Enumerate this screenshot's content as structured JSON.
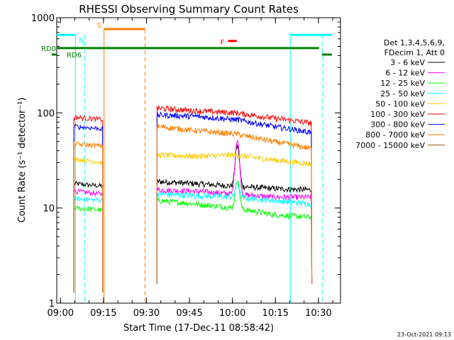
{
  "chart_data": {
    "type": "line",
    "title": "RHESSI Observing Summary Count Rates",
    "xlabel": "Start Time (17-Dec-11 08:58:42)",
    "ylabel": "Count Rate (s⁻¹ detector⁻¹)",
    "ylog": true,
    "ylim": [
      1,
      1000
    ],
    "xlim_minutes": [
      0,
      99
    ],
    "x_ticks": [
      {
        "label": "09:00",
        "t": 1.3
      },
      {
        "label": "09:15",
        "t": 16.3
      },
      {
        "label": "09:30",
        "t": 31.3
      },
      {
        "label": "09:45",
        "t": 46.3
      },
      {
        "label": "10:00",
        "t": 61.3
      },
      {
        "label": "10:15",
        "t": 76.3
      },
      {
        "label": "10:30",
        "t": 91.3
      }
    ],
    "y_ticks": [
      {
        "label": "1",
        "v": 1
      },
      {
        "label": "10",
        "v": 10
      },
      {
        "label": "100",
        "v": 100
      },
      {
        "label": "1000",
        "v": 1000
      }
    ],
    "legend_header": [
      "Det 1,3,4,5,6,9,",
      "FDecim 1, Att 0"
    ],
    "legend_position": "right",
    "series": [
      {
        "name": "3 - 6 keV",
        "color": "#000000",
        "seg1": [
          18,
          17
        ],
        "seg2": [
          19,
          18,
          17,
          16,
          15.5
        ],
        "flare_peak": 45
      },
      {
        "name": "6 - 12 keV",
        "color": "#ff00ff",
        "seg1": [
          15,
          14
        ],
        "seg2": [
          15.5,
          15,
          14,
          13,
          13
        ],
        "flare_peak": 52
      },
      {
        "name": "12 - 25 keV",
        "color": "#00ff00",
        "seg1": [
          10,
          9.5
        ],
        "seg2": [
          12,
          11,
          10,
          8.5,
          8
        ],
        "flare_peak": 20
      },
      {
        "name": "25 - 50 keV",
        "color": "#00ffff",
        "seg1": [
          12.5,
          12
        ],
        "seg2": [
          14,
          13.5,
          13,
          12,
          11
        ],
        "flare_peak": 18
      },
      {
        "name": "50 - 100 keV",
        "color": "#ffcc00",
        "seg1": [
          33,
          30
        ],
        "seg2": [
          36,
          35,
          36,
          32,
          29
        ],
        "flare_peak": 36
      },
      {
        "name": "100 - 300 keV",
        "color": "#ff0000",
        "seg1": [
          90,
          85
        ],
        "seg2": [
          112,
          105,
          100,
          88,
          78
        ],
        "flare_peak": 100
      },
      {
        "name": "300 - 800 keV",
        "color": "#0000ff",
        "seg1": [
          72,
          68
        ],
        "seg2": [
          95,
          92,
          85,
          72,
          62
        ],
        "flare_peak": 85
      },
      {
        "name": "800 - 7000 keV",
        "color": "#ff7f00",
        "seg1": [
          47,
          45
        ],
        "seg2": [
          72,
          65,
          60,
          50,
          42
        ],
        "flare_peak": 60
      },
      {
        "name": "7000 - 15000 keV",
        "color": "#8b5a00",
        "seg1": [],
        "seg2": [],
        "flare_peak": null
      }
    ],
    "data_segments_minutes": [
      [
        6,
        16
      ],
      [
        35,
        89
      ]
    ],
    "flare_time_minutes": 63,
    "annotations": [
      {
        "label": "N",
        "color": "#00ffff",
        "kind": "night",
        "intervals": [
          [
            -3,
            6.5
          ],
          [
            81.5,
            96
          ]
        ],
        "dashed_at": [
          9.8,
          92.8
        ],
        "solid_at": [
          6.5,
          81.5
        ],
        "level": 660
      },
      {
        "label": "S",
        "color": "#ff7f00",
        "kind": "saa",
        "intervals": [
          [
            16.5,
            30.8
          ]
        ],
        "dashed_at": [
          30.8
        ],
        "solid_at": [
          16.5
        ],
        "level": 760
      },
      {
        "label": "F",
        "color": "#ff0000",
        "kind": "flare",
        "intervals": [
          [
            59.8,
            62.8
          ]
        ],
        "level": 570
      },
      {
        "label": "RD0",
        "color": "#008000",
        "kind": "rd",
        "intervals": [
          [
            -3,
            91.5
          ]
        ],
        "level": 480
      },
      {
        "label": "RD6",
        "color": "#008000",
        "kind": "rd",
        "intervals": [
          [
            -3,
            -1.8
          ],
          [
            92.5,
            96
          ]
        ],
        "level": 410
      }
    ],
    "footer_date": "23-Oct-2021 09:13"
  }
}
